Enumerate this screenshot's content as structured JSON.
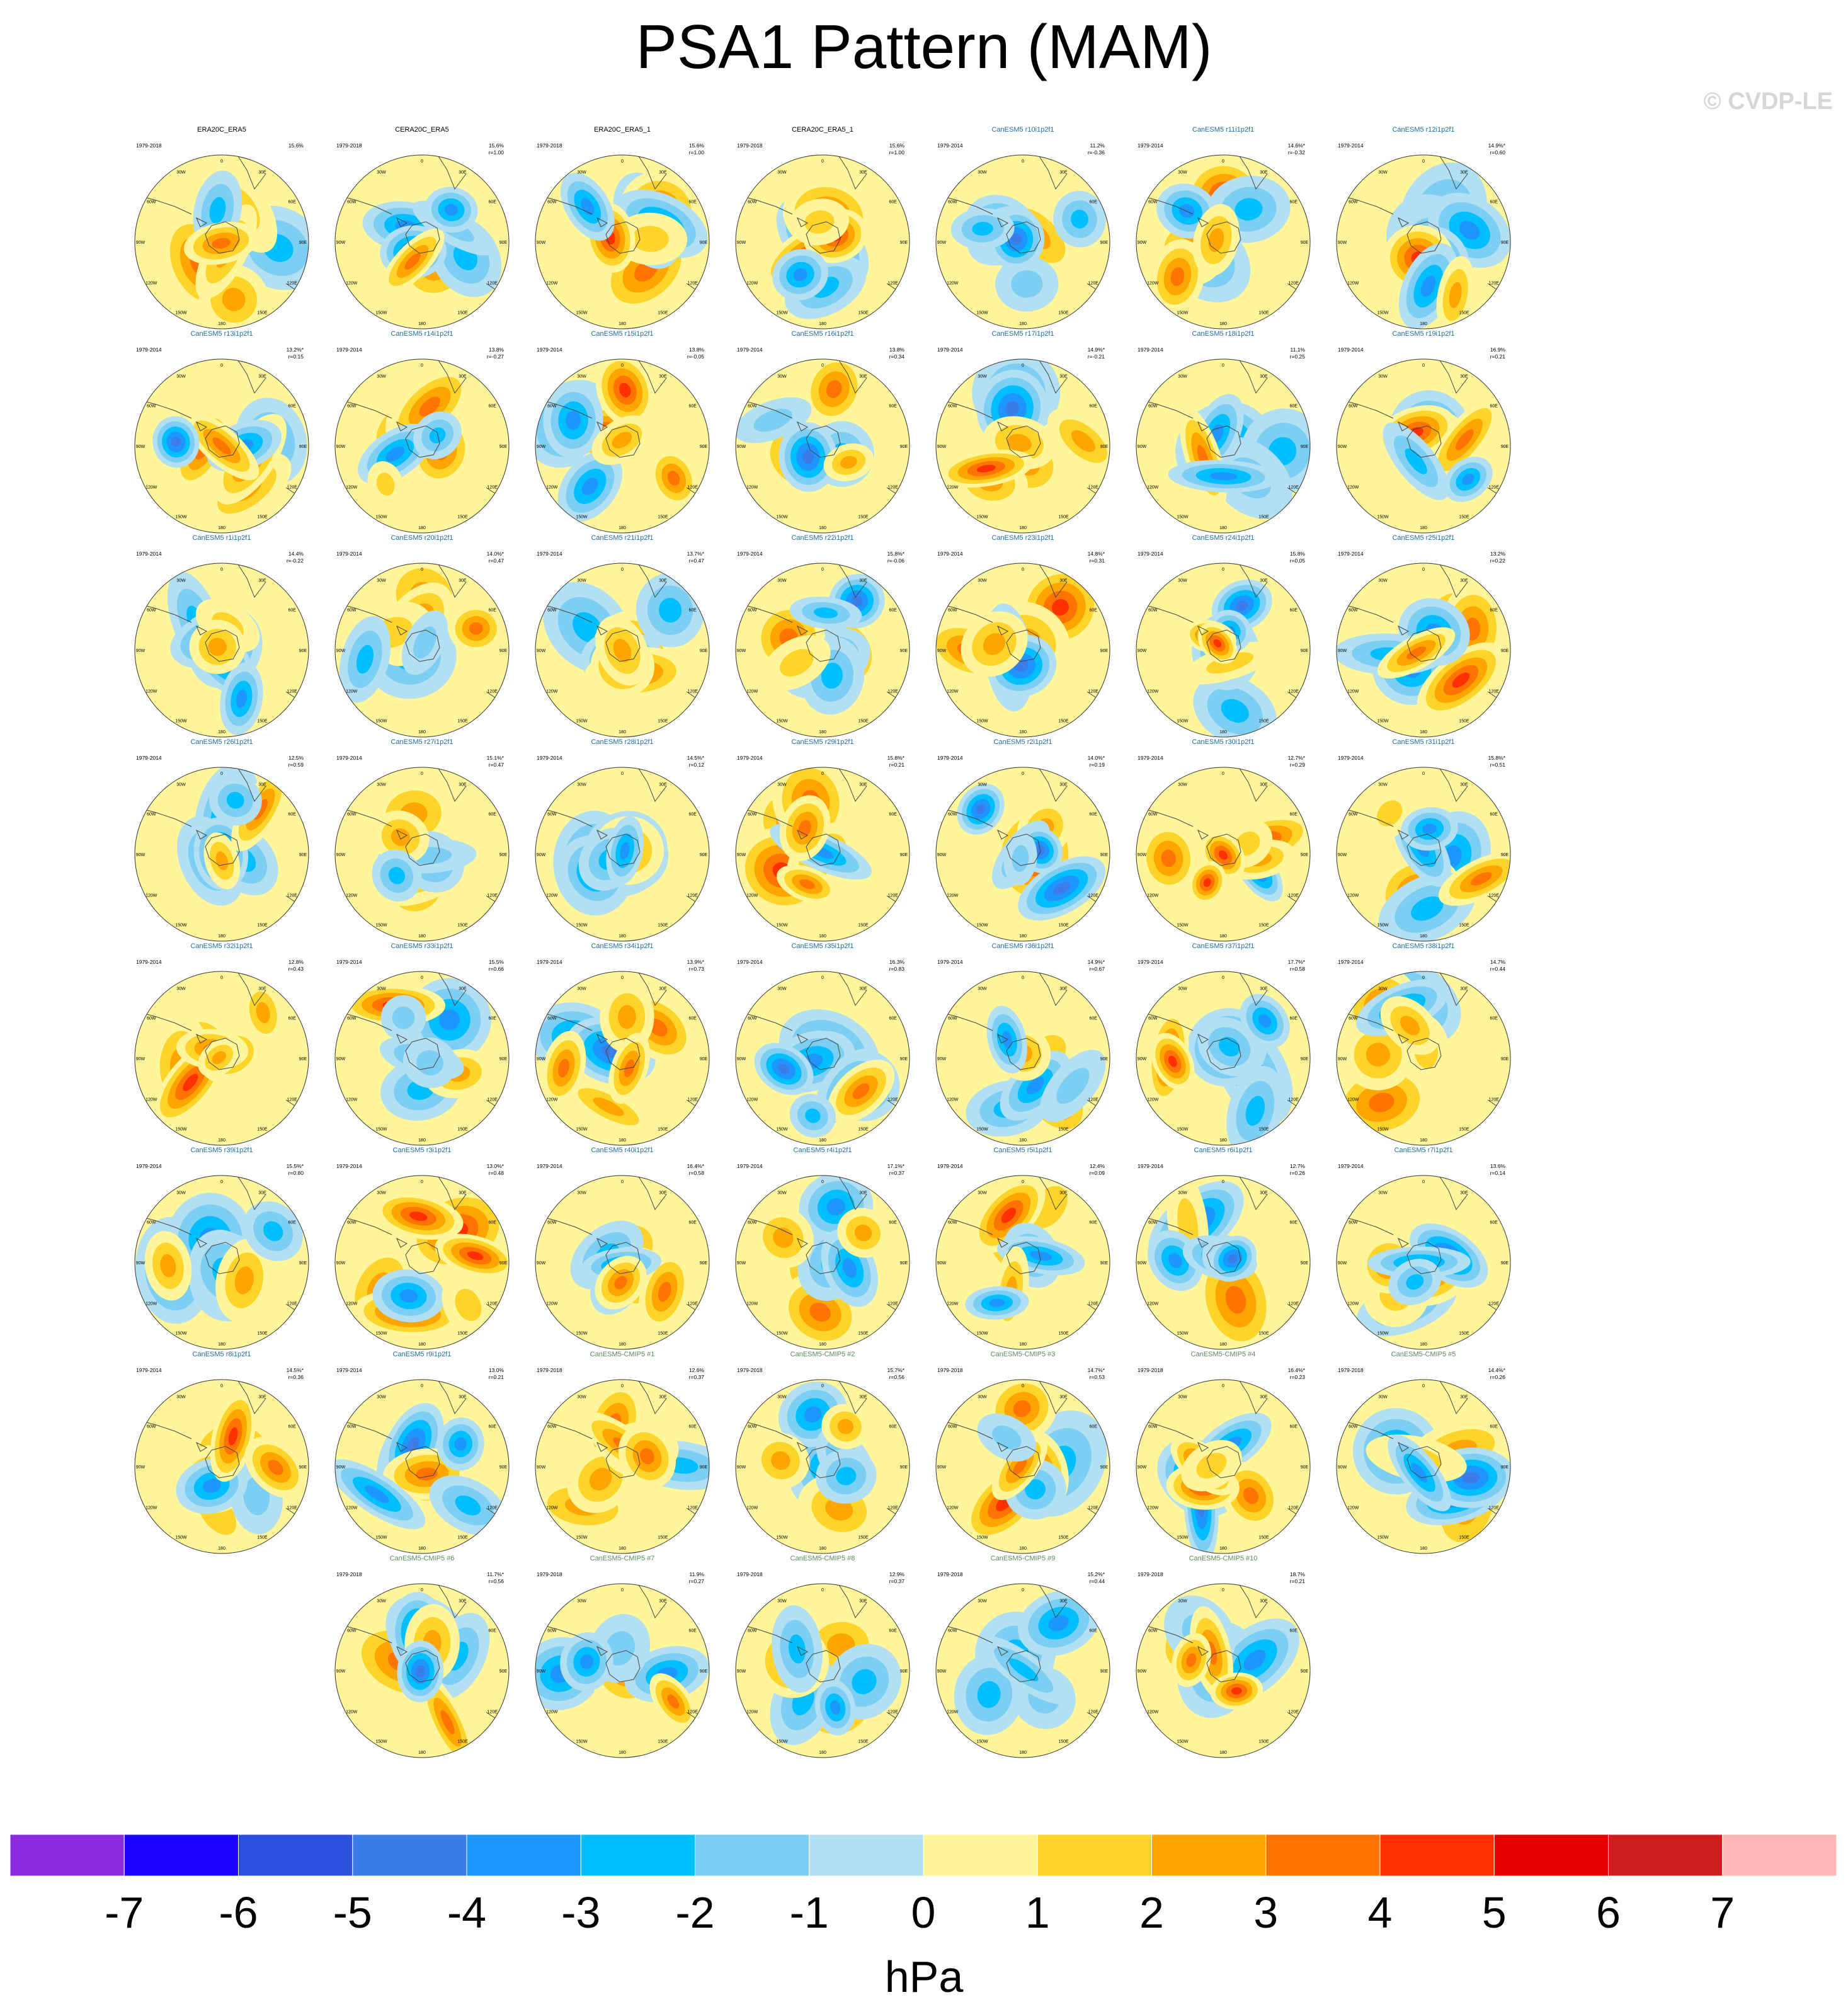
{
  "title": "PSA1 Pattern (MAM)",
  "watermark": "© CVDP-LE",
  "colorbar": {
    "unit": "hPa",
    "levels": [
      -7,
      -6,
      -5,
      -4,
      -3,
      -2,
      -1,
      0,
      1,
      2,
      3,
      4,
      5,
      6,
      7
    ],
    "colors": [
      "#8a2be2",
      "#1a00ff",
      "#2d4fdd",
      "#3a7de8",
      "#1e96ff",
      "#00bfff",
      "#7ccff2",
      "#b3dff2",
      "#fff59a",
      "#ffd42a",
      "#ffa500",
      "#ff7400",
      "#ff3000",
      "#e60000",
      "#cc1e1e",
      "#ffb6b6"
    ]
  },
  "chart_data": {
    "type": "map-grid",
    "variable": "PSA1 Pattern (MAM)",
    "units": "hPa",
    "lon_labels": [
      "0",
      "30E",
      "60E",
      "90E",
      "120E",
      "150E",
      "180",
      "150W",
      "120W",
      "90W",
      "60W",
      "30W"
    ],
    "panels": [
      {
        "title": "ERA20C_ERA5",
        "period": "1979-2018",
        "pct": "15.6%",
        "r": "",
        "kind": "obs"
      },
      {
        "title": "CERA20C_ERA5",
        "period": "1979-2018",
        "pct": "15.6%",
        "r": "r=1.00",
        "kind": "obs"
      },
      {
        "title": "ERA20C_ERA5_1",
        "period": "1979-2018",
        "pct": "15.6%",
        "r": "r=1.00",
        "kind": "obs"
      },
      {
        "title": "CERA20C_ERA5_1",
        "period": "1979-2018",
        "pct": "15.6%",
        "r": "r=1.00",
        "kind": "obs"
      },
      {
        "title": "CanESM5 r10i1p2f1",
        "period": "1979-2014",
        "pct": "11.2%",
        "r": "r=-0.36",
        "kind": "member"
      },
      {
        "title": "CanESM5 r11i1p2f1",
        "period": "1979-2014",
        "pct": "14.6%*",
        "r": "r=-0.32",
        "kind": "member"
      },
      {
        "title": "CanESM5 r12i1p2f1",
        "period": "1979-2014",
        "pct": "14.9%*",
        "r": "r=0.60",
        "kind": "member"
      },
      {
        "title": "CanESM5 r13i1p2f1",
        "period": "1979-2014",
        "pct": "13.2%*",
        "r": "r=0.15",
        "kind": "member"
      },
      {
        "title": "CanESM5 r14i1p2f1",
        "period": "1979-2014",
        "pct": "13.8%",
        "r": "r=-0.27",
        "kind": "member"
      },
      {
        "title": "CanESM5 r15i1p2f1",
        "period": "1979-2014",
        "pct": "13.8%",
        "r": "r=-0.05",
        "kind": "member"
      },
      {
        "title": "CanESM5 r16i1p2f1",
        "period": "1979-2014",
        "pct": "13.8%",
        "r": "r=0.34",
        "kind": "member"
      },
      {
        "title": "CanESM5 r17i1p2f1",
        "period": "1979-2014",
        "pct": "14.9%*",
        "r": "r=-0.21",
        "kind": "member"
      },
      {
        "title": "CanESM5 r18i1p2f1",
        "period": "1979-2014",
        "pct": "11.1%",
        "r": "r=0.25",
        "kind": "member"
      },
      {
        "title": "CanESM5 r19i1p2f1",
        "period": "1979-2014",
        "pct": "16.9%",
        "r": "r=0.21",
        "kind": "member"
      },
      {
        "title": "CanESM5 r1i1p2f1",
        "period": "1979-2014",
        "pct": "14.4%",
        "r": "r=-0.22",
        "kind": "member"
      },
      {
        "title": "CanESM5 r20i1p2f1",
        "period": "1979-2014",
        "pct": "14.0%*",
        "r": "r=0.47",
        "kind": "member"
      },
      {
        "title": "CanESM5 r21i1p2f1",
        "period": "1979-2014",
        "pct": "13.7%*",
        "r": "r=0.47",
        "kind": "member"
      },
      {
        "title": "CanESM5 r22i1p2f1",
        "period": "1979-2014",
        "pct": "15.8%*",
        "r": "r=-0.06",
        "kind": "member"
      },
      {
        "title": "CanESM5 r23i1p2f1",
        "period": "1979-2014",
        "pct": "14.8%*",
        "r": "r=0.31",
        "kind": "member"
      },
      {
        "title": "CanESM5 r24i1p2f1",
        "period": "1979-2014",
        "pct": "15.8%",
        "r": "r=0.05",
        "kind": "member"
      },
      {
        "title": "CanESM5 r25i1p2f1",
        "period": "1979-2014",
        "pct": "13.2%",
        "r": "r=0.22",
        "kind": "member"
      },
      {
        "title": "CanESM5 r26i1p2f1",
        "period": "1979-2014",
        "pct": "12.5%",
        "r": "r=0.59",
        "kind": "member"
      },
      {
        "title": "CanESM5 r27i1p2f1",
        "period": "1979-2014",
        "pct": "15.1%*",
        "r": "r=0.47",
        "kind": "member"
      },
      {
        "title": "CanESM5 r28i1p2f1",
        "period": "1979-2014",
        "pct": "14.5%*",
        "r": "r=0.12",
        "kind": "member"
      },
      {
        "title": "CanESM5 r29i1p2f1",
        "period": "1979-2014",
        "pct": "15.8%*",
        "r": "r=0.21",
        "kind": "member"
      },
      {
        "title": "CanESM5 r2i1p2f1",
        "period": "1979-2014",
        "pct": "14.0%*",
        "r": "r=0.19",
        "kind": "member"
      },
      {
        "title": "CanESM5 r30i1p2f1",
        "period": "1979-2014",
        "pct": "12.7%*",
        "r": "r=0.29",
        "kind": "member"
      },
      {
        "title": "CanESM5 r31i1p2f1",
        "period": "1979-2014",
        "pct": "15.8%*",
        "r": "r=0.51",
        "kind": "member"
      },
      {
        "title": "CanESM5 r32i1p2f1",
        "period": "1979-2014",
        "pct": "12.8%",
        "r": "r=0.43",
        "kind": "member"
      },
      {
        "title": "CanESM5 r33i1p2f1",
        "period": "1979-2014",
        "pct": "15.5%",
        "r": "r=0.66",
        "kind": "member"
      },
      {
        "title": "CanESM5 r34i1p2f1",
        "period": "1979-2014",
        "pct": "13.9%*",
        "r": "r=0.73",
        "kind": "member"
      },
      {
        "title": "CanESM5 r35i1p2f1",
        "period": "1979-2014",
        "pct": "16.3%",
        "r": "r=0.83",
        "kind": "member"
      },
      {
        "title": "CanESM5 r36i1p2f1",
        "period": "1979-2014",
        "pct": "14.9%*",
        "r": "r=0.67",
        "kind": "member"
      },
      {
        "title": "CanESM5 r37i1p2f1",
        "period": "1979-2014",
        "pct": "17.7%*",
        "r": "r=0.58",
        "kind": "member"
      },
      {
        "title": "CanESM5 r38i1p2f1",
        "period": "1979-2014",
        "pct": "14.7%",
        "r": "r=0.44",
        "kind": "member"
      },
      {
        "title": "CanESM5 r39i1p2f1",
        "period": "1979-2014",
        "pct": "15.5%*",
        "r": "r=0.80",
        "kind": "member"
      },
      {
        "title": "CanESM5 r3i1p2f1",
        "period": "1979-2014",
        "pct": "13.0%*",
        "r": "r=0.48",
        "kind": "member"
      },
      {
        "title": "CanESM5 r40i1p2f1",
        "period": "1979-2014",
        "pct": "16.4%*",
        "r": "r=0.58",
        "kind": "member"
      },
      {
        "title": "CanESM5 r4i1p2f1",
        "period": "1979-2014",
        "pct": "17.1%*",
        "r": "r=0.37",
        "kind": "member"
      },
      {
        "title": "CanESM5 r5i1p2f1",
        "period": "1979-2014",
        "pct": "12.4%",
        "r": "r=0.09",
        "kind": "member"
      },
      {
        "title": "CanESM5 r6i1p2f1",
        "period": "1979-2014",
        "pct": "12.7%",
        "r": "r=0.26",
        "kind": "member"
      },
      {
        "title": "CanESM5 r7i1p2f1",
        "period": "1979-2014",
        "pct": "13.6%",
        "r": "r=0.14",
        "kind": "member"
      },
      {
        "title": "CanESM5 r8i1p2f1",
        "period": "1979-2014",
        "pct": "14.5%*",
        "r": "r=0.36",
        "kind": "member"
      },
      {
        "title": "CanESM5 r9i1p2f1",
        "period": "1979-2014",
        "pct": "13.0%",
        "r": "r=0.21",
        "kind": "member"
      },
      {
        "title": "CanESM5-CMIP5 #1",
        "period": "1979-2018",
        "pct": "12.6%",
        "r": "r=0.37",
        "kind": "cmip5"
      },
      {
        "title": "CanESM5-CMIP5 #2",
        "period": "1979-2018",
        "pct": "15.7%*",
        "r": "r=0.56",
        "kind": "cmip5"
      },
      {
        "title": "CanESM5-CMIP5 #3",
        "period": "1979-2018",
        "pct": "14.7%*",
        "r": "r=0.53",
        "kind": "cmip5"
      },
      {
        "title": "CanESM5-CMIP5 #4",
        "period": "1979-2018",
        "pct": "16.4%*",
        "r": "r=0.23",
        "kind": "cmip5"
      },
      {
        "title": "CanESM5-CMIP5 #5",
        "period": "1979-2018",
        "pct": "14.4%*",
        "r": "r=0.26",
        "kind": "cmip5"
      },
      {
        "title": "CanESM5-CMIP5 #6",
        "period": "1979-2018",
        "pct": "11.7%*",
        "r": "r=0.56",
        "kind": "cmip5"
      },
      {
        "title": "CanESM5-CMIP5 #7",
        "period": "1979-2018",
        "pct": "11.9%",
        "r": "r=0.27",
        "kind": "cmip5"
      },
      {
        "title": "CanESM5-CMIP5 #8",
        "period": "1979-2018",
        "pct": "12.9%",
        "r": "r=0.37",
        "kind": "cmip5"
      },
      {
        "title": "CanESM5-CMIP5 #9",
        "period": "1979-2018",
        "pct": "15.2%*",
        "r": "r=0.44",
        "kind": "cmip5"
      },
      {
        "title": "CanESM5-CMIP5 #10",
        "period": "1979-2018",
        "pct": "18.7%",
        "r": "r=0.21",
        "kind": "cmip5"
      }
    ]
  }
}
